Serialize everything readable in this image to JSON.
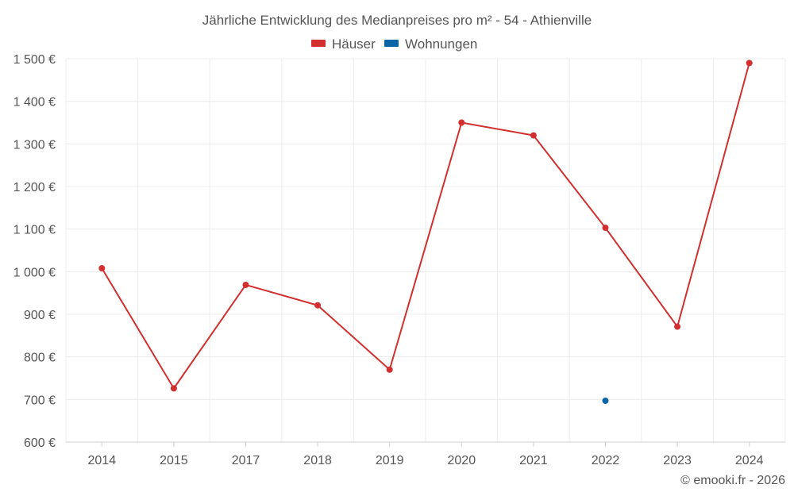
{
  "chart_data": {
    "type": "line",
    "title": "Jährliche Entwicklung des Medianpreises pro m² - 54 - Athienville",
    "categories": [
      "2014",
      "2015",
      "2017",
      "2018",
      "2019",
      "2020",
      "2021",
      "2022",
      "2023",
      "2024"
    ],
    "series": [
      {
        "name": "Häuser",
        "color": "#d32f2f",
        "values": [
          1008,
          726,
          969,
          921,
          770,
          1350,
          1320,
          1103,
          871,
          1490
        ]
      },
      {
        "name": "Wohnungen",
        "color": "#0b66a8",
        "values": [
          null,
          null,
          null,
          null,
          null,
          null,
          null,
          697,
          null,
          null
        ]
      }
    ],
    "ylim": [
      600,
      1500
    ],
    "yticks": [
      600,
      700,
      800,
      900,
      1000,
      1100,
      1200,
      1300,
      1400,
      1500
    ],
    "ytick_labels": [
      "600 €",
      "700 €",
      "800 €",
      "900 €",
      "1 000 €",
      "1 100 €",
      "1 200 €",
      "1 300 €",
      "1 400 €",
      "1 500 €"
    ],
    "grid": true,
    "legend_position": "top-center"
  },
  "credit": "© emooki.fr - 2026"
}
